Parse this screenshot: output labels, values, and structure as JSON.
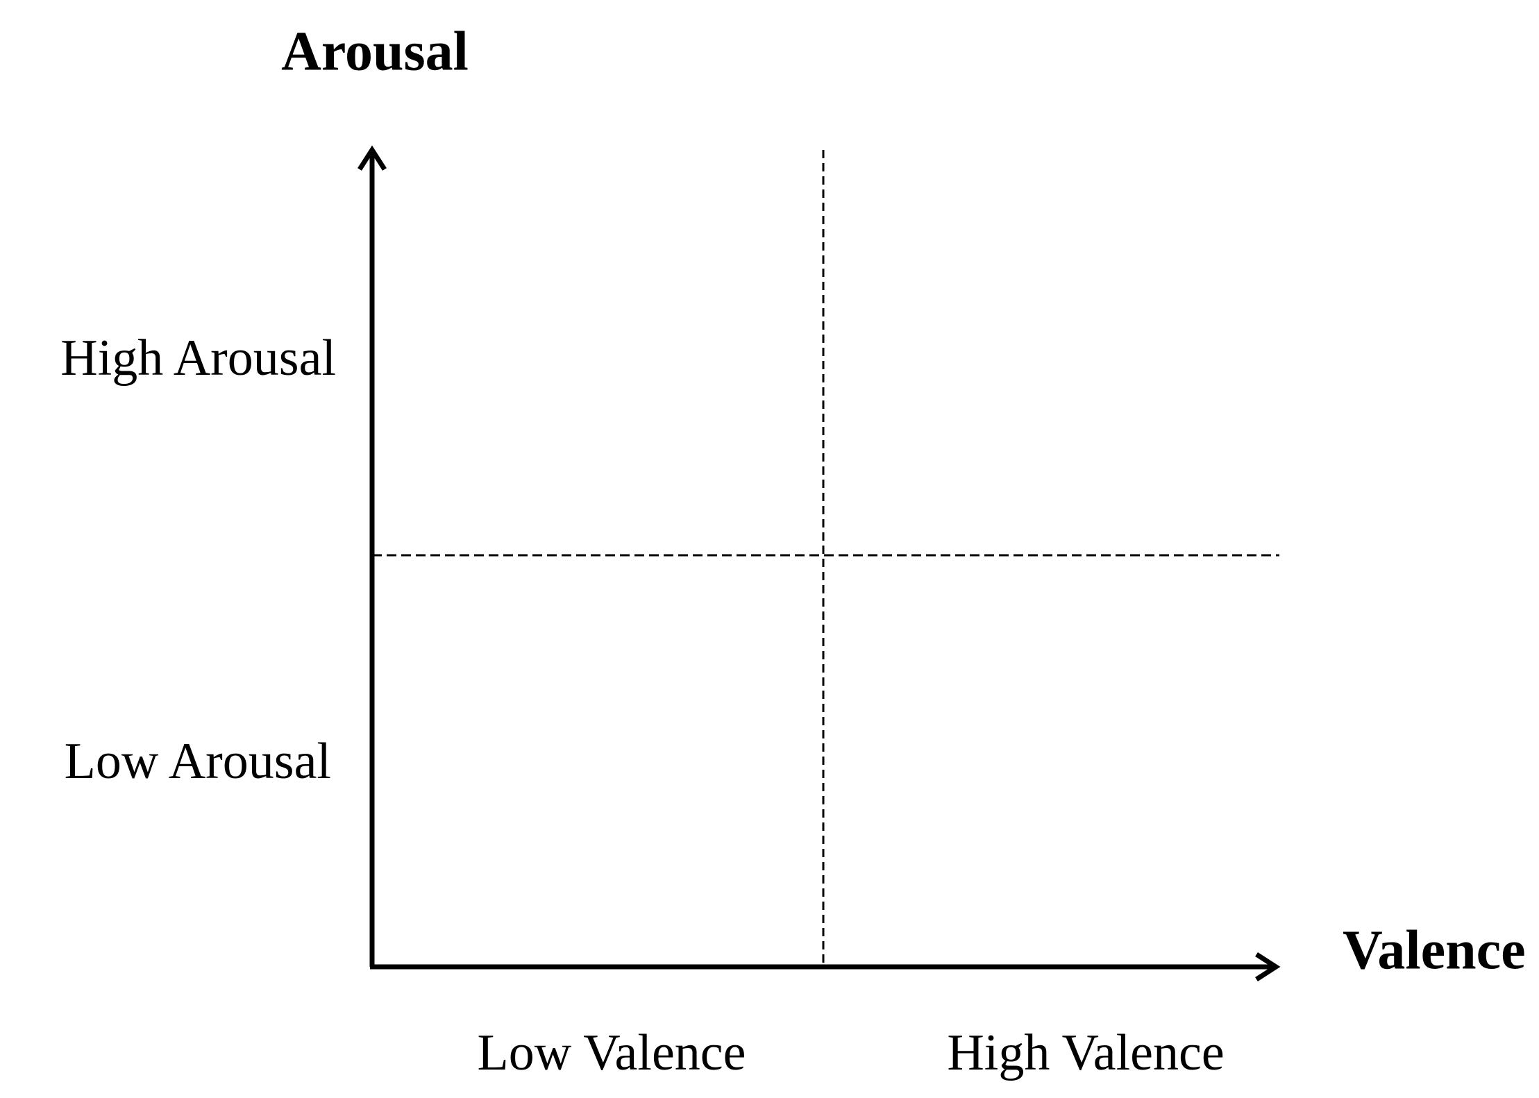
{
  "y_axis": {
    "label": "Arousal",
    "high": "High Arousal",
    "low": "Low Arousal"
  },
  "x_axis": {
    "label": "Valence",
    "low": "Low Valence",
    "high": "High Valence"
  }
}
